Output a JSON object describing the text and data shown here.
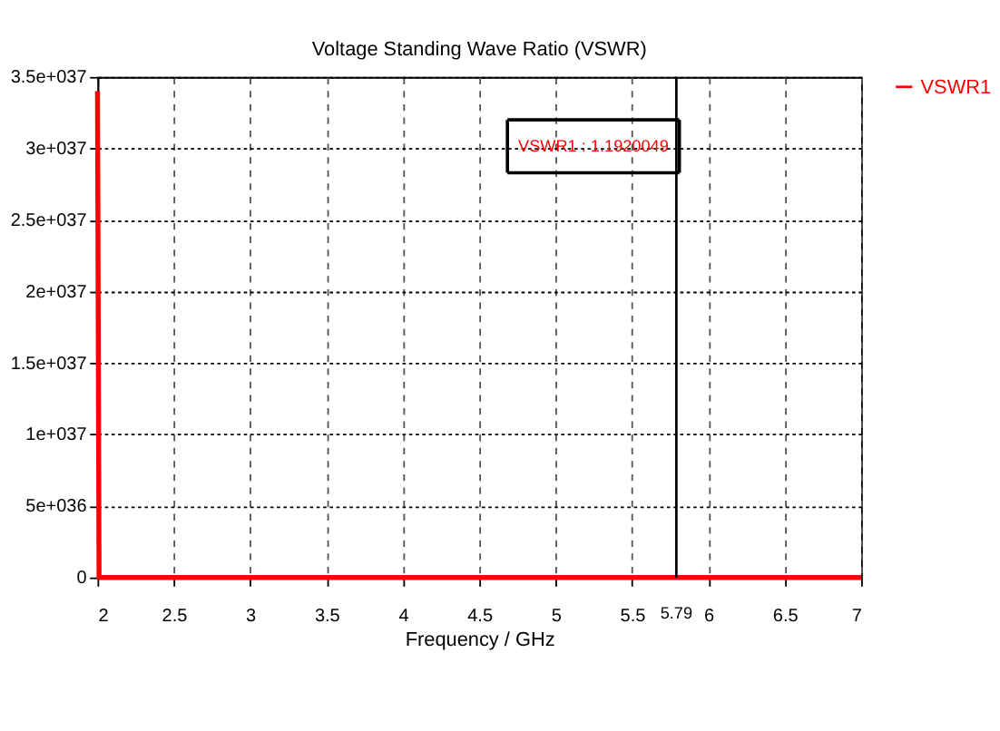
{
  "chart_data": {
    "type": "line",
    "title": "Voltage Standing Wave Ratio (VSWR)",
    "xlabel": "Frequency / GHz",
    "x": [
      2,
      2.01,
      7
    ],
    "series": [
      {
        "name": "VSWR1",
        "color": "#ff0000",
        "values": [
          3.4e+37,
          0,
          0
        ]
      }
    ],
    "xlim": [
      2,
      7
    ],
    "xticks": [
      2,
      2.5,
      3,
      3.5,
      4,
      4.5,
      5,
      5.5,
      6,
      6.5,
      7
    ],
    "ylim": [
      0,
      3.5e+37
    ],
    "yticks": [
      {
        "value": 0,
        "label": "0"
      },
      {
        "value": 5e+36,
        "label": "5e+036"
      },
      {
        "value": 1e+37,
        "label": "1e+037"
      },
      {
        "value": 1.5e+37,
        "label": "1.5e+037"
      },
      {
        "value": 2e+37,
        "label": "2e+037"
      },
      {
        "value": 2.5e+37,
        "label": "2.5e+037"
      },
      {
        "value": 3e+37,
        "label": "3e+037"
      },
      {
        "value": 3.5e+37,
        "label": "3.5e+037"
      }
    ],
    "ref_lines": [
      {
        "axis": "x",
        "value": 5.79,
        "label": "5.79",
        "color": "#000000"
      }
    ],
    "annotations": [
      "VSWR1 : 1.1920049"
    ],
    "grid": true,
    "legend": "top right",
    "marker": "none",
    "line_style": "solid"
  }
}
